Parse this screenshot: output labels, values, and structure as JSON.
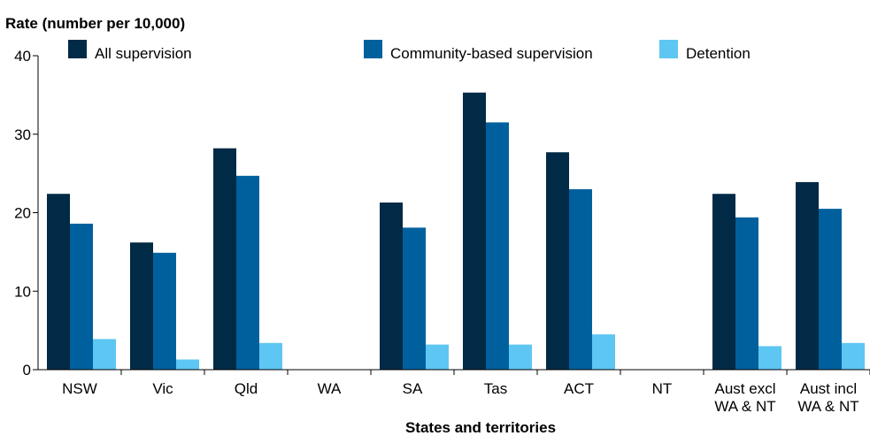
{
  "chart_data": {
    "type": "bar",
    "title": "",
    "ylabel": "Rate (number per 10,000)",
    "xlabel": "States and territories",
    "ylim": [
      0,
      40
    ],
    "yticks": [
      0,
      10,
      20,
      30,
      40
    ],
    "grid": false,
    "legend_position": "top",
    "categories": [
      [
        "NSW"
      ],
      [
        "Vic"
      ],
      [
        "Qld"
      ],
      [
        "WA"
      ],
      [
        "SA"
      ],
      [
        "Tas"
      ],
      [
        "ACT"
      ],
      [
        "NT"
      ],
      [
        "Aust excl",
        "WA & NT"
      ],
      [
        "Aust incl",
        "WA & NT"
      ]
    ],
    "series": [
      {
        "name": "All supervision",
        "color": "#002a45",
        "values": [
          22.4,
          16.2,
          28.2,
          null,
          21.3,
          35.3,
          27.7,
          null,
          22.4,
          23.9
        ]
      },
      {
        "name": "Community-based supervision",
        "color": "#00609e",
        "values": [
          18.6,
          14.9,
          24.7,
          null,
          18.1,
          31.5,
          23.0,
          null,
          19.4,
          20.5
        ]
      },
      {
        "name": "Detention",
        "color": "#5ec6f2",
        "values": [
          3.9,
          1.3,
          3.4,
          null,
          3.2,
          3.2,
          4.5,
          null,
          3.0,
          3.4
        ]
      }
    ]
  }
}
